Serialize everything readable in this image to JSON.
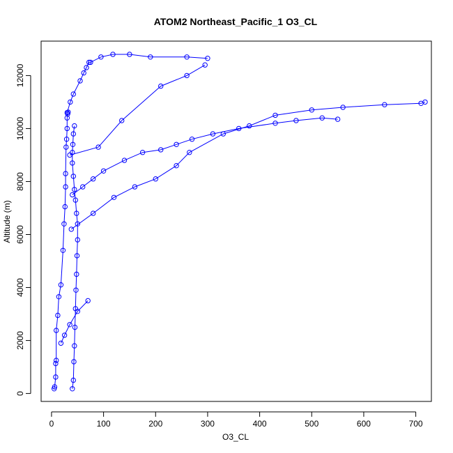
{
  "chart_data": {
    "type": "line",
    "title": "ATOM2 Northeast_Pacific_1 O3_CL",
    "xlabel": "O3_CL",
    "ylabel": "Altitude (m)",
    "xlim": [
      -20,
      730
    ],
    "ylim": [
      -300,
      13300
    ],
    "xticks": [
      0,
      100,
      200,
      300,
      400,
      500,
      600,
      700
    ],
    "yticks": [
      0,
      2000,
      4000,
      6000,
      8000,
      10000,
      12000
    ],
    "grid": false,
    "legend": "none",
    "marker": "open-circle",
    "series_color": "#0000ff",
    "series": [
      {
        "x": [
          5,
          6,
          8,
          8,
          9,
          9,
          12,
          14,
          18,
          22,
          24,
          26,
          27,
          27,
          28,
          29,
          30,
          30,
          31,
          32
        ],
        "y": [
          180,
          250,
          620,
          1130,
          1250,
          2380,
          2950,
          3650,
          4100,
          5400,
          6400,
          7050,
          7800,
          8300,
          9300,
          9600,
          10000,
          10400,
          10550,
          10620
        ]
      },
      {
        "x": [
          40,
          42,
          43,
          44,
          45,
          46,
          47,
          48,
          49,
          50,
          50,
          48,
          46,
          44,
          42,
          40,
          40,
          41,
          42,
          44
        ],
        "y": [
          180,
          500,
          1200,
          1800,
          2500,
          3200,
          3900,
          4500,
          5200,
          5800,
          6400,
          6800,
          7300,
          7700,
          8200,
          8700,
          9100,
          9400,
          9800,
          10100
        ]
      },
      {
        "x": [
          30,
          36,
          42,
          55,
          62,
          67,
          72,
          75,
          95,
          118,
          150,
          190,
          260,
          300
        ],
        "y": [
          10600,
          11000,
          11300,
          11800,
          12100,
          12300,
          12500,
          12500,
          12700,
          12800,
          12800,
          12700,
          12700,
          12650
        ]
      },
      {
        "x": [
          40,
          60,
          80,
          100,
          140,
          175,
          210,
          240,
          270,
          310,
          360,
          430,
          470,
          520,
          550
        ],
        "y": [
          7500,
          7800,
          8100,
          8400,
          8800,
          9100,
          9200,
          9400,
          9600,
          9800,
          10000,
          10200,
          10300,
          10400,
          10350
        ]
      },
      {
        "x": [
          38,
          80,
          120,
          160,
          200,
          240,
          265,
          330,
          380,
          430,
          500,
          560,
          640,
          710,
          718
        ],
        "y": [
          6200,
          6800,
          7400,
          7800,
          8100,
          8600,
          9100,
          9800,
          10100,
          10500,
          10700,
          10800,
          10900,
          10950,
          11000
        ]
      },
      {
        "x": [
          35,
          90,
          135,
          210,
          260,
          295
        ],
        "y": [
          9000,
          9300,
          10300,
          11600,
          12000,
          12400
        ]
      },
      {
        "x": [
          18,
          25,
          35,
          50,
          70
        ],
        "y": [
          1900,
          2200,
          2600,
          3100,
          3500
        ]
      }
    ]
  }
}
